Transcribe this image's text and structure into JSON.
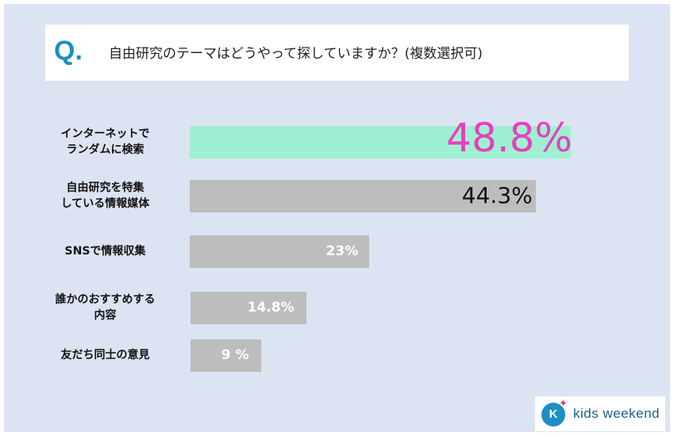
{
  "question": {
    "mark": "Q.",
    "text": "自由研究のテーマはどうやって探していますか？(複数選択可)"
  },
  "chart_data": {
    "type": "bar",
    "orientation": "horizontal",
    "categories": [
      [
        "インターネットで",
        "ランダムに検索"
      ],
      [
        "自由研究を特集",
        "している情報媒体"
      ],
      [
        "SNSで情報収集"
      ],
      [
        "誰かのおすすめする",
        "内容"
      ],
      [
        "友だち同士の意見"
      ]
    ],
    "values": [
      48.8,
      44.3,
      23,
      14.8,
      9
    ],
    "value_labels": [
      "48.8%",
      "44.3%",
      "23%",
      "14.8%",
      "9 %"
    ],
    "highlight_color": "#9ff0d2",
    "bar_color": "#bdbdbd",
    "highlight_value_color": "#e83fc0"
  },
  "logo": {
    "mark": "K",
    "text": "kids weekend"
  }
}
